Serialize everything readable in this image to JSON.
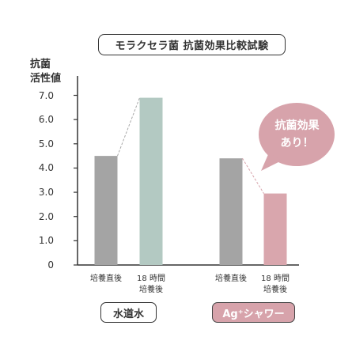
{
  "title": "モラクセラ菌 抗菌効果比較試験",
  "callout": "抗菌効果\nあり！",
  "groups": [
    {
      "label": "水道水",
      "style": "plain"
    },
    {
      "label": "Ag⁺シャワー",
      "style": "accent"
    }
  ],
  "colors": {
    "gray_bar": "#a4a4a4",
    "green_bar": "#b3c9c2",
    "pink_bar": "#d9a6ad",
    "accent": "#d7a3ab",
    "axis": "#333333",
    "connector": "#a8a8a8",
    "connector_pink": "#d7a3ab"
  },
  "chart_data": {
    "type": "bar",
    "title": "モラクセラ菌 抗菌効果比較試験",
    "ylabel": "抗菌\n活性値",
    "xlabel": "",
    "ylim": [
      0,
      7.8
    ],
    "yticks": [
      "0",
      "1.0",
      "2.0",
      "3.0",
      "4.0",
      "5.0",
      "6.0",
      "7.0"
    ],
    "grid": false,
    "categories": [
      "培養直後",
      "18 時間\n培養後",
      "培養直後",
      "18 時間\n培養後"
    ],
    "values": [
      4.5,
      6.9,
      4.4,
      2.95
    ]
  }
}
